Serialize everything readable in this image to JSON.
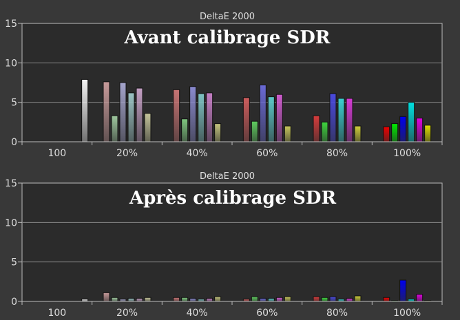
{
  "chart_data": [
    {
      "type": "bar",
      "title": "DeltaE 2000",
      "overlay_title": "Avant calibrage SDR",
      "ylim": [
        0,
        15
      ],
      "yticks": [
        "0",
        "5",
        "10",
        "15"
      ],
      "categories": [
        "100",
        "20%",
        "40%",
        "60%",
        "80%",
        "100%"
      ],
      "bar_colors": {
        "100": [
          "#f4f4f4"
        ],
        "20%": [
          "#c79a9a",
          "#9ec79e",
          "#a4a4cc",
          "#9cc4c4",
          "#c4a0c4",
          "#c4c49a"
        ],
        "40%": [
          "#c77474",
          "#7fc77f",
          "#8a8acf",
          "#7ec2c2",
          "#c47ec4",
          "#c4c47e"
        ],
        "60%": [
          "#cc5c5c",
          "#5fcc5f",
          "#6a6ad6",
          "#5cc8c8",
          "#cc5ccc",
          "#c8c85c"
        ],
        "80%": [
          "#d63c3c",
          "#3ed63e",
          "#4a4ae0",
          "#3ad0d0",
          "#d43ad4",
          "#d0d03a"
        ],
        "100%": [
          "#ee0000",
          "#00ee00",
          "#0000ee",
          "#00e0e0",
          "#e000e0",
          "#e0e000"
        ]
      },
      "values": {
        "100": [
          7.9
        ],
        "20%": [
          7.6,
          3.3,
          7.5,
          6.2,
          6.8,
          3.6
        ],
        "40%": [
          6.6,
          2.9,
          7.0,
          6.1,
          6.2,
          2.3
        ],
        "60%": [
          5.6,
          2.6,
          7.2,
          5.7,
          6.0,
          2.0
        ],
        "80%": [
          3.3,
          2.5,
          6.1,
          5.5,
          5.5,
          2.0
        ],
        "100%": [
          1.9,
          2.3,
          3.2,
          5.0,
          3.0,
          2.1
        ]
      }
    },
    {
      "type": "bar",
      "title": "DeltaE 2000",
      "overlay_title": "Après calibrage SDR",
      "ylim": [
        0,
        15
      ],
      "yticks": [
        "0",
        "5",
        "10",
        "15"
      ],
      "categories": [
        "100",
        "20%",
        "40%",
        "60%",
        "80%",
        "100%"
      ],
      "bar_colors": {
        "100": [
          "#f4f4f4"
        ],
        "20%": [
          "#c79a9a",
          "#9ec79e",
          "#a4a4cc",
          "#9cc4c4",
          "#c4a0c4",
          "#c4c49a"
        ],
        "40%": [
          "#c77474",
          "#7fc77f",
          "#8a8acf",
          "#7ec2c2",
          "#c47ec4",
          "#c4c47e"
        ],
        "60%": [
          "#cc5c5c",
          "#5fcc5f",
          "#6a6ad6",
          "#5cc8c8",
          "#cc5ccc",
          "#c8c85c"
        ],
        "80%": [
          "#d63c3c",
          "#3ed63e",
          "#4a4ae0",
          "#3ad0d0",
          "#d43ad4",
          "#d0d03a"
        ],
        "100%": [
          "#ee0000",
          "#00ee00",
          "#0000ee",
          "#00e0e0",
          "#e000e0",
          "#e0e000"
        ]
      },
      "values": {
        "100": [
          0.3
        ],
        "20%": [
          1.1,
          0.5,
          0.3,
          0.4,
          0.4,
          0.5
        ],
        "40%": [
          0.5,
          0.5,
          0.4,
          0.3,
          0.4,
          0.6
        ],
        "60%": [
          0.3,
          0.6,
          0.4,
          0.4,
          0.5,
          0.6
        ],
        "80%": [
          0.6,
          0.5,
          0.6,
          0.3,
          0.4,
          0.7
        ],
        "100%": [
          0.5,
          0.1,
          2.7,
          0.3,
          0.9,
          0.1
        ]
      }
    }
  ]
}
